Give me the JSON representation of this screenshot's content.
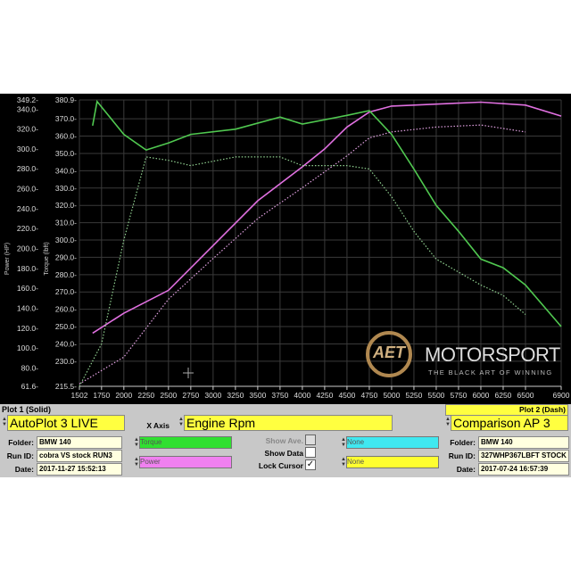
{
  "chart_data": {
    "type": "line",
    "xlabel": "",
    "x_ticks": [
      "1502",
      "1750",
      "2000",
      "2250",
      "2500",
      "2750",
      "3000",
      "3250",
      "3500",
      "3750",
      "4000",
      "4250",
      "4500",
      "4750",
      "5000",
      "5250",
      "5500",
      "5750",
      "6000",
      "6250",
      "6500",
      "6900"
    ],
    "xlim": [
      1502,
      6900
    ],
    "power_axis": {
      "label": "Power (HP)",
      "ticks": [
        "349.2",
        "340.0",
        "320.0",
        "300.0",
        "280.0",
        "260.0",
        "240.0",
        "220.0",
        "200.0",
        "180.0",
        "160.0",
        "140.0",
        "120.0",
        "100.0",
        "80.0",
        "61.6"
      ],
      "range": [
        61.6,
        349.2
      ]
    },
    "torque_axis": {
      "label": "Torque (lbft)",
      "ticks": [
        "380.9",
        "370.0",
        "360.0",
        "350.0",
        "340.0",
        "330.0",
        "320.0",
        "310.0",
        "300.0",
        "290.0",
        "280.0",
        "270.0",
        "260.0",
        "250.0",
        "240.0",
        "230.0",
        "215.5"
      ],
      "range": [
        215.5,
        380.9
      ]
    },
    "grid": true,
    "series": [
      {
        "name": "Power",
        "plot": "solid",
        "axis": "power",
        "color": "#e070e0",
        "x": [
          1650,
          2000,
          2500,
          3000,
          3500,
          4000,
          4250,
          4500,
          4750,
          5000,
          5500,
          6000,
          6500,
          6900
        ],
        "y": [
          115,
          135,
          158,
          203,
          248,
          282,
          300,
          322,
          337,
          343,
          345,
          347,
          344,
          333
        ]
      },
      {
        "name": "Torque",
        "plot": "solid",
        "axis": "torque",
        "color": "#50c850",
        "x": [
          1650,
          1700,
          2000,
          2250,
          2500,
          2750,
          3250,
          3750,
          4000,
          4500,
          4750,
          5000,
          5250,
          5500,
          5750,
          6000,
          6250,
          6500,
          6900
        ],
        "y": [
          366,
          380,
          361,
          352,
          356,
          361,
          364,
          371,
          367,
          372,
          374.7,
          361,
          341,
          320,
          305,
          289,
          284,
          274,
          250
        ]
      },
      {
        "name": "Power",
        "plot": "dash",
        "axis": "power",
        "color": "#e0a0e0",
        "x": [
          1502,
          2000,
          2500,
          3000,
          3500,
          4000,
          4500,
          4750,
          5000,
          5500,
          6000,
          6500
        ],
        "y": [
          64,
          91,
          149,
          190,
          230,
          261,
          293,
          311,
          317,
          322,
          324,
          317
        ]
      },
      {
        "name": "Torque",
        "plot": "dash",
        "axis": "torque",
        "color": "#90d090",
        "x": [
          1502,
          1750,
          2000,
          2250,
          2500,
          2750,
          3250,
          3750,
          4000,
          4500,
          4750,
          5000,
          5250,
          5500,
          6000,
          6250,
          6500
        ],
        "y": [
          215.5,
          240,
          300,
          348,
          346,
          343,
          348,
          348,
          343,
          343,
          341,
          325,
          305,
          289,
          274,
          268,
          257
        ]
      }
    ]
  },
  "logo": {
    "brand": "AET",
    "name": "MOTORSPORT",
    "tagline": "THE BLACK ART OF WINNING"
  },
  "plot1": {
    "title": "Plot 1 (Solid)",
    "name": "AutoPlot 3 LIVE",
    "folder_label": "Folder:",
    "folder": "BMW 140",
    "run_label": "Run ID:",
    "run": "cobra VS stock RUN3",
    "date_label": "Date:",
    "date": "2017-11-27 15:52:13"
  },
  "xaxis": {
    "label": "X Axis",
    "value": "Engine Rpm"
  },
  "channels": {
    "c1": "Torque",
    "c2": "Power",
    "c3": "None",
    "c4": "None"
  },
  "options": {
    "show_ave": "Show Ave.",
    "show_data": "Show Data",
    "lock_cursor": "Lock Cursor",
    "lock_mark": "✓"
  },
  "plot2": {
    "title": "Plot 2 (Dash)",
    "name": "Comparison AP 3",
    "folder_label": "Folder:",
    "folder": "BMW 140",
    "run_label": "Run ID:",
    "run": "327WHP367LBFT STOCK",
    "date_label": "Date:",
    "date": "2017-07-24 16:57:39"
  }
}
